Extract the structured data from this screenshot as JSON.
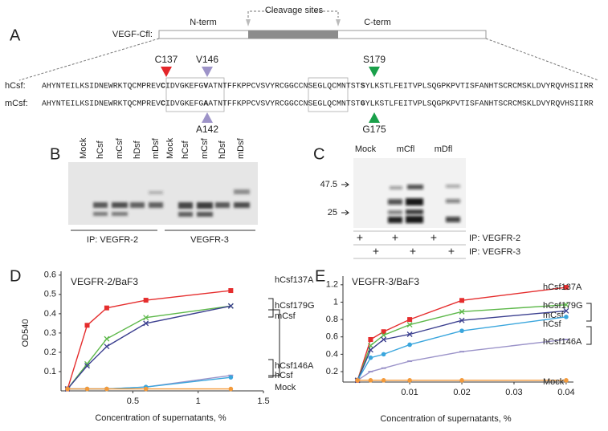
{
  "panel_a": {
    "label": "A",
    "construct": "VEGF-Cfl:",
    "n_term": "N-term",
    "cleavage": "Cleavage sites",
    "c_term": "C-term",
    "top_sites": [
      {
        "text": "C137",
        "color": "#e3262a"
      },
      {
        "text": "V146",
        "color": "#9d93c8"
      },
      {
        "text": "S179",
        "color": "#1aa04a"
      }
    ],
    "bottom_sites": [
      {
        "text": "A142",
        "color": "#9d93c8"
      },
      {
        "text": "G175",
        "color": "#1aa04a"
      }
    ],
    "sequences": [
      {
        "label": "hCsf:",
        "segments": [
          "AHYNTEILKSIDNEWRKTQCMPREV",
          "C",
          "IDVGKEFG",
          "V",
          "ATNTFFKPPCVSVYRCGGCCNSEGLQCMNTST",
          "S",
          "YLKSTLFEITVPLSQGPKPVTISFANHTSCRCMSKLDVYRQVHSIIRR"
        ],
        "highlight_colors": [
          "#e3262a",
          "#9d93c8",
          "#1aa04a"
        ]
      },
      {
        "label": "mCsf:",
        "segments": [
          "AHYNTEILKSIDNEWRKTQCMPREV",
          "C",
          "IDVGKEFG",
          "A",
          "ATNTFFKPPCVSVYRCGGCCNSEGLQCMNTST",
          "G",
          "YLKSTLFEITVPLSQGPKPVTISFANHTSCRCMSKLDVYRQVHSIIRR"
        ],
        "highlight_colors": [
          "#222222",
          "#9d93c8",
          "#1aa04a"
        ]
      }
    ]
  },
  "panel_b": {
    "label": "B",
    "lanes": [
      "Mock",
      "hCsf",
      "mCsf",
      "hDsf",
      "mDsf",
      "Mock",
      "hCsf",
      "mCsf",
      "hDsf",
      "mDsf"
    ],
    "groups": [
      "IP: VEGFR-2",
      "VEGFR-3"
    ]
  },
  "panel_c": {
    "label": "C",
    "lanes": [
      "Mock",
      "mCfl",
      "mDfl"
    ],
    "markers": [
      "47.5",
      "25"
    ],
    "plus_rows": [
      [
        "+",
        null,
        "+",
        null,
        "+",
        null
      ],
      [
        null,
        "+",
        null,
        "+",
        null,
        "+"
      ]
    ],
    "row_labels": [
      "IP: VEGFR-2",
      "IP: VEGFR-3"
    ]
  },
  "chart_data": [
    {
      "type": "line",
      "panel": "D",
      "title": "VEGFR-2/BaF3",
      "y_label": "OD540",
      "x_label": "Concentration of supernatants, %",
      "x": [
        0,
        0.15,
        0.3,
        0.6,
        1.25
      ],
      "xlim": [
        -0.05,
        1.5
      ],
      "xticks": [
        0.5,
        1,
        1.5
      ],
      "ylim": [
        0,
        0.62
      ],
      "yticks": [
        0.1,
        0.2,
        0.3,
        0.4,
        0.5,
        0.6
      ],
      "series": [
        {
          "name": "hCsf137A",
          "color": "#e52d2d",
          "marker": "square",
          "values": [
            0.01,
            0.34,
            0.43,
            0.47,
            0.52
          ]
        },
        {
          "name": "hCsf179G",
          "color": "#5db84a",
          "marker": "cross",
          "values": [
            0.01,
            0.14,
            0.27,
            0.38,
            0.44
          ]
        },
        {
          "name": "mCsf",
          "color": "#3b3f8f",
          "marker": "cross",
          "values": [
            0.01,
            0.13,
            0.23,
            0.35,
            0.44
          ]
        },
        {
          "name": "hCsf146A",
          "color": "#9b93c9",
          "marker": "dash",
          "values": [
            0.01,
            0.01,
            0.01,
            0.02,
            0.08
          ]
        },
        {
          "name": "hCsf",
          "color": "#3aa6dd",
          "marker": "circle",
          "values": [
            0.01,
            0.01,
            0.01,
            0.02,
            0.07
          ]
        },
        {
          "name": "Mock",
          "color": "#f39a3b",
          "marker": "circle",
          "values": [
            0.01,
            0.01,
            0.01,
            0.01,
            0.01
          ]
        }
      ]
    },
    {
      "type": "line",
      "panel": "E",
      "title": "VEGFR-3/BaF3",
      "x_label": "Concentration of supernatants, %",
      "x": [
        0,
        0.0025,
        0.005,
        0.01,
        0.02,
        0.04
      ],
      "xlim": [
        -0.0028,
        0.0414
      ],
      "xticks": [
        0.01,
        0.02,
        0.03,
        0.04
      ],
      "ylim": [
        0.08,
        1.3
      ],
      "yticks": [
        0.2,
        0.4,
        0.6,
        0.8,
        1,
        1.2
      ],
      "series": [
        {
          "name": "hCsf137A",
          "color": "#e52d2d",
          "marker": "square",
          "values": [
            0.1,
            0.57,
            0.66,
            0.8,
            1.02,
            1.17
          ]
        },
        {
          "name": "hCsf179G",
          "color": "#5db84a",
          "marker": "cross",
          "values": [
            0.1,
            0.5,
            0.62,
            0.74,
            0.89,
            0.97
          ]
        },
        {
          "name": "mCsf",
          "color": "#3b3f8f",
          "marker": "cross",
          "values": [
            0.1,
            0.45,
            0.57,
            0.63,
            0.79,
            0.9
          ]
        },
        {
          "name": "hCsf",
          "color": "#3aa6dd",
          "marker": "circle",
          "values": [
            0.1,
            0.36,
            0.4,
            0.51,
            0.67,
            0.83
          ]
        },
        {
          "name": "hCsf146A",
          "color": "#9b93c9",
          "marker": "dash",
          "values": [
            0.1,
            0.2,
            0.24,
            0.32,
            0.43,
            0.57
          ]
        },
        {
          "name": "Mock",
          "color": "#f39a3b",
          "marker": "circle",
          "values": [
            0.1,
            0.1,
            0.1,
            0.1,
            0.1,
            0.1
          ]
        }
      ]
    }
  ]
}
